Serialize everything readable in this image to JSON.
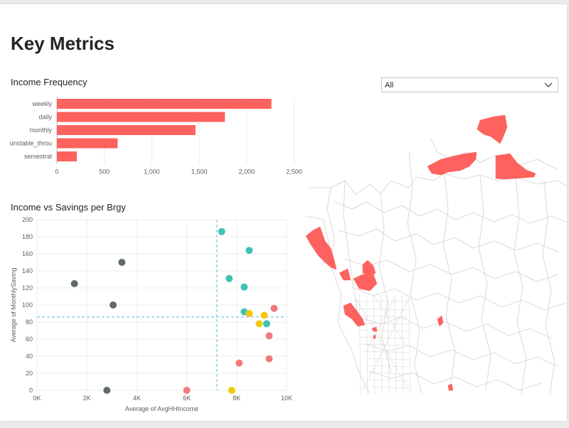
{
  "page": {
    "title": "Key Metrics"
  },
  "filter": {
    "selected": "All",
    "icon": "chevron-down-icon"
  },
  "bar_chart": {
    "title": "Income Frequency",
    "chart_data": {
      "type": "bar",
      "orientation": "horizontal",
      "categories": [
        "weekly",
        "daily",
        "monthly",
        "unstable_throu",
        "semestral"
      ],
      "values": [
        2260,
        1770,
        1460,
        640,
        210
      ],
      "xlim": [
        0,
        2600
      ],
      "xticks": [
        "0",
        "500",
        "1,000",
        "1,500",
        "2,000",
        "2,500"
      ],
      "xtick_values": [
        0,
        500,
        1000,
        1500,
        2000,
        2500
      ],
      "color": "#fd625e"
    }
  },
  "scatter_chart": {
    "title": "Income vs Savings per Brgy",
    "chart_data": {
      "type": "scatter",
      "xlabel": "Average of AvgHHIncome",
      "ylabel": "Average of MonthlySaving",
      "xlim": [
        0,
        10000
      ],
      "ylim": [
        0,
        200
      ],
      "xticks": [
        "0K",
        "2K",
        "4K",
        "6K",
        "8K",
        "10K"
      ],
      "xtick_values": [
        0,
        2000,
        4000,
        6000,
        8000,
        10000
      ],
      "yticks": [
        "0",
        "20",
        "40",
        "60",
        "80",
        "100",
        "120",
        "140",
        "160",
        "180",
        "200"
      ],
      "ytick_values": [
        0,
        20,
        40,
        60,
        80,
        100,
        120,
        140,
        160,
        180,
        200
      ],
      "average_x": 7200,
      "average_y": 86,
      "average_line_color": "#a8d8ec",
      "points": [
        {
          "x": 1500,
          "y": 125,
          "color": "#5f6b6d"
        },
        {
          "x": 3400,
          "y": 150,
          "color": "#5f6b6d"
        },
        {
          "x": 3050,
          "y": 100,
          "color": "#5f6b6d"
        },
        {
          "x": 2800,
          "y": 0,
          "color": "#5f6b6d"
        },
        {
          "x": 7400,
          "y": 186,
          "color": "#3fc1b5"
        },
        {
          "x": 8500,
          "y": 164,
          "color": "#3fc1b5"
        },
        {
          "x": 7700,
          "y": 131,
          "color": "#3fc1b5"
        },
        {
          "x": 8300,
          "y": 121,
          "color": "#3fc1b5"
        },
        {
          "x": 8300,
          "y": 92,
          "color": "#3fc1b5"
        },
        {
          "x": 9200,
          "y": 78,
          "color": "#3fc1b5"
        },
        {
          "x": 8500,
          "y": 90,
          "color": "#f2c80f"
        },
        {
          "x": 9100,
          "y": 88,
          "color": "#f2c80f"
        },
        {
          "x": 8900,
          "y": 78,
          "color": "#f2c80f"
        },
        {
          "x": 7800,
          "y": 0,
          "color": "#f2c80f"
        },
        {
          "x": 9500,
          "y": 96,
          "color": "#f37a7a"
        },
        {
          "x": 9300,
          "y": 64,
          "color": "#f37a7a"
        },
        {
          "x": 9300,
          "y": 37,
          "color": "#f37a7a"
        },
        {
          "x": 8100,
          "y": 32,
          "color": "#f37a7a"
        },
        {
          "x": 6000,
          "y": 0,
          "color": "#f37a7a"
        }
      ]
    }
  },
  "map": {
    "highlight_color": "#fd625e",
    "boundary_color": "#d0d0d0",
    "icon": "map-boundaries"
  }
}
